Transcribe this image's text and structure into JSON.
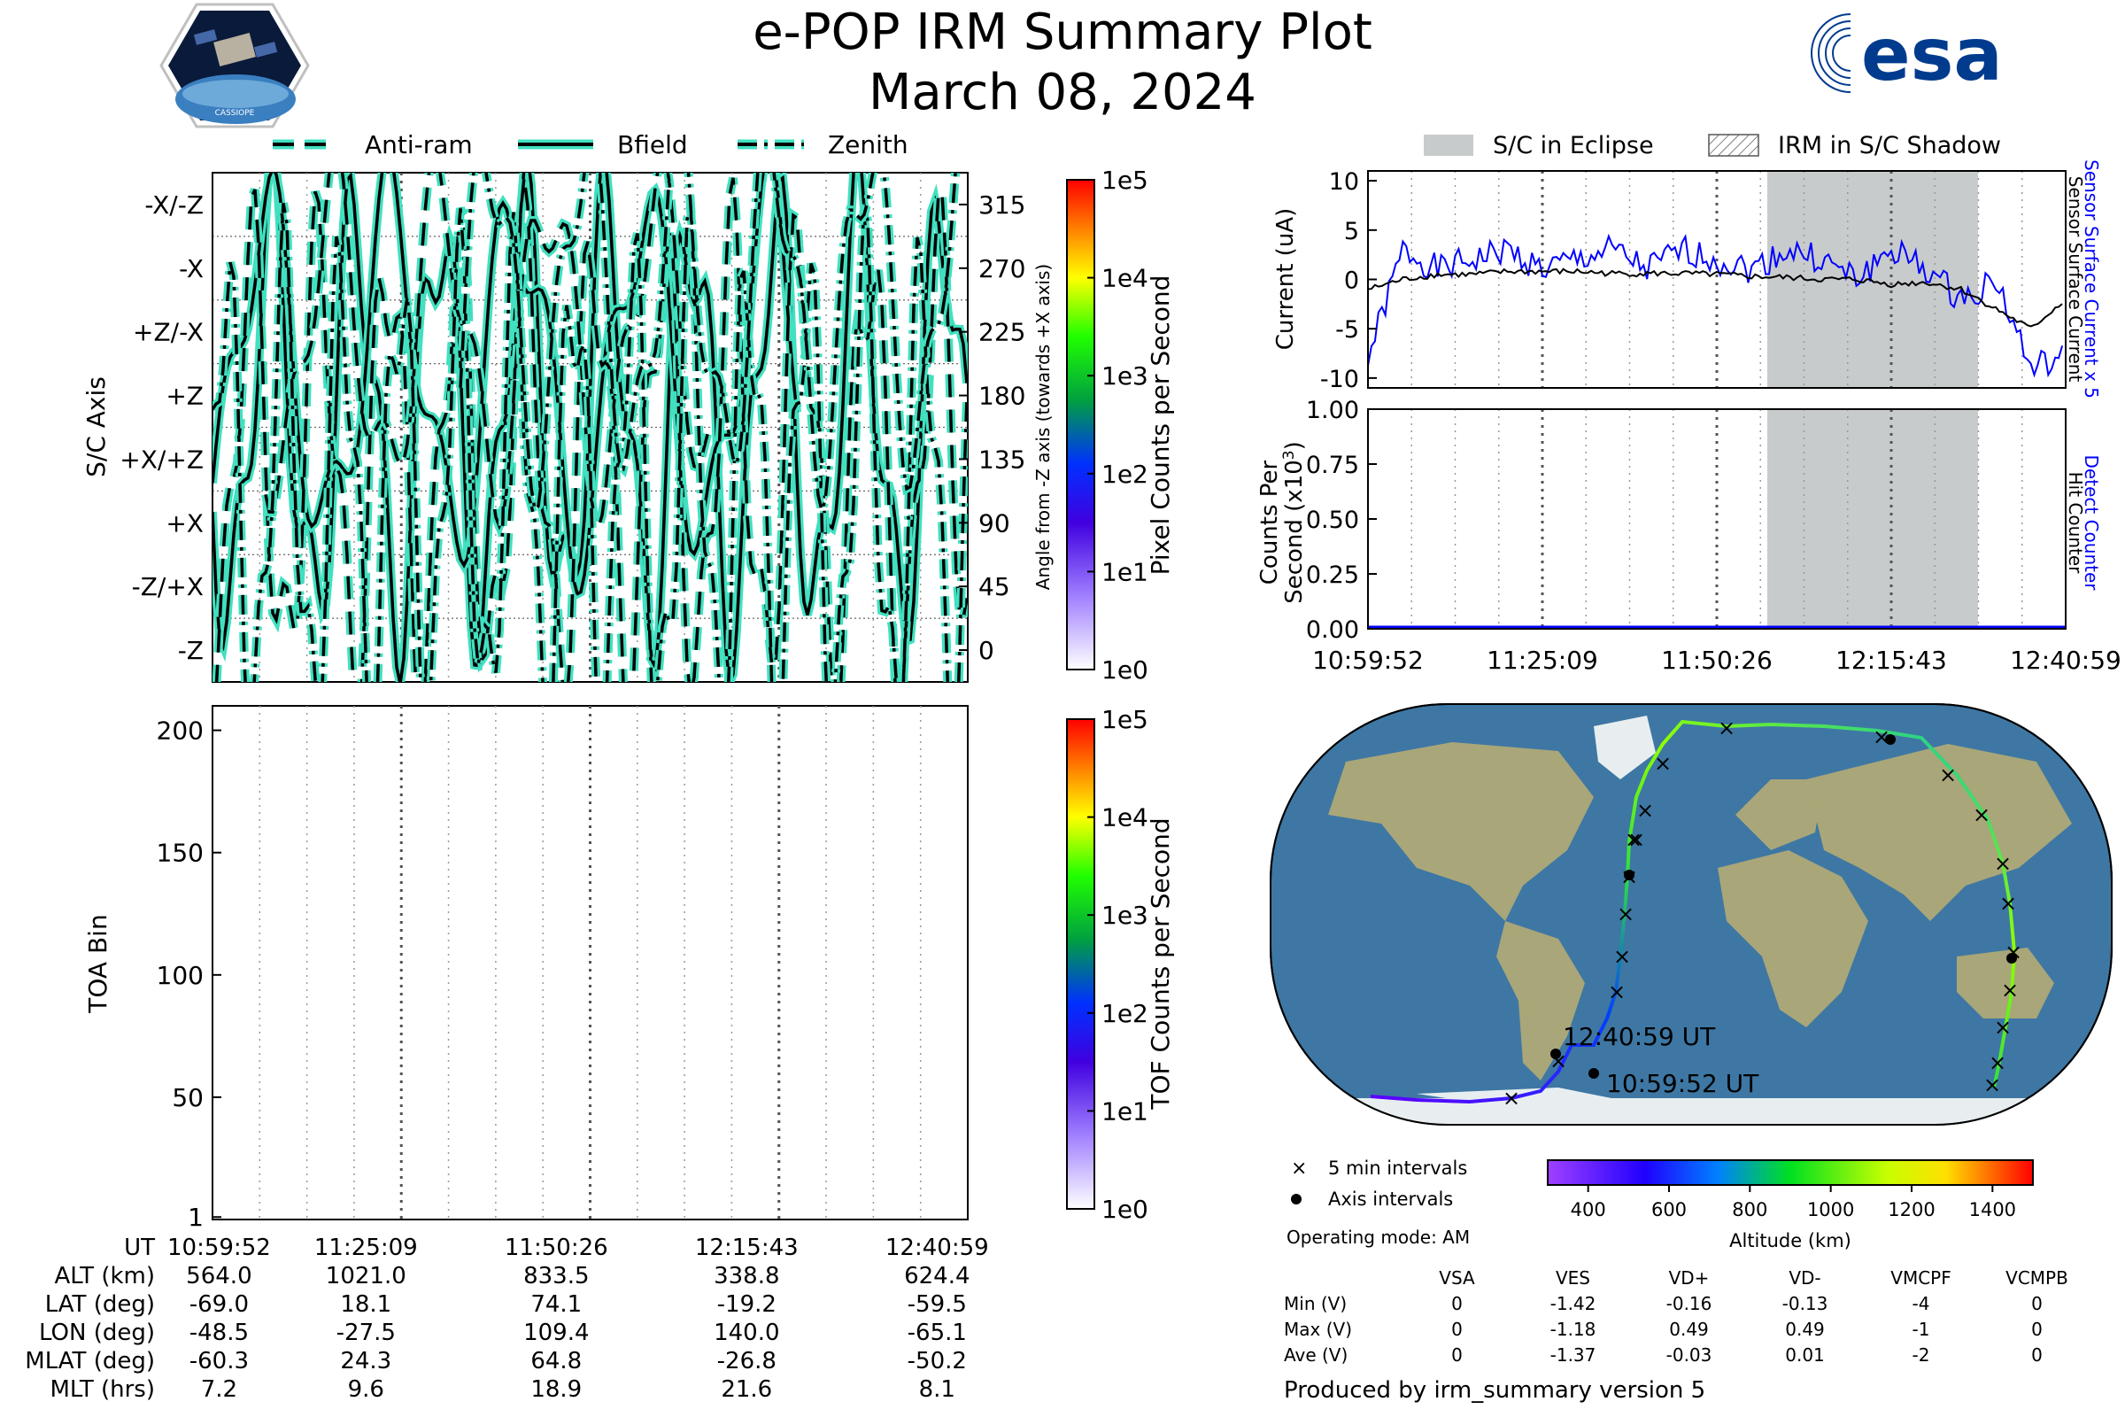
{
  "header": {
    "title": "e-POP IRM Summary Plot",
    "date": "March 08, 2024",
    "mission_logo_text": "CASSIOPE",
    "agency_logo_text": "esa"
  },
  "colors": {
    "trace_line": "#000000",
    "trace_halo": "#40e0c0",
    "surface_current": "#0000ff",
    "current_black": "#000000",
    "eclipse": "#c8cbcc",
    "map_ocean": "#3a6f9b",
    "map_land": "#a4a47c"
  },
  "ut_labels": [
    "10:59:52",
    "11:25:09",
    "11:50:26",
    "12:15:43",
    "12:40:59"
  ],
  "attitude_plot": {
    "legend": [
      "Anti-ram",
      "Bfield",
      "Zenith"
    ],
    "ylabel": "S/C Axis",
    "y_axis_labels": [
      "-X/-Z",
      "-X",
      "+Z/-X",
      "+Z",
      "+X/+Z",
      "+X",
      "-Z/+X",
      "-Z"
    ],
    "right_ticks": [
      "315",
      "270",
      "225",
      "180",
      "135",
      "90",
      "45",
      "0"
    ],
    "right_label": "Angle from -Z axis (towards +X axis)",
    "colorbar_label": "Pixel Counts per Second",
    "colorbar_ticks": [
      "1e5",
      "1e4",
      "1e3",
      "1e2",
      "1e1",
      "1e0"
    ]
  },
  "tof_plot": {
    "ylabel": "TOA Bin",
    "yticks": [
      "200",
      "150",
      "100",
      "50",
      "1"
    ],
    "colorbar_label": "TOF Counts per Second",
    "colorbar_ticks": [
      "1e5",
      "1e4",
      "1e3",
      "1e2",
      "1e1",
      "1e0"
    ]
  },
  "current_plot": {
    "legend": [
      "S/C in Eclipse",
      "IRM in S/C Shadow"
    ],
    "ylabel": "Current (uA)",
    "yticks": [
      "10",
      "5",
      "0",
      "-5",
      "-10"
    ],
    "right_label_blue": "Sensor Surface Current x 5",
    "right_label_black": "Sensor Surface Current"
  },
  "counts_plot": {
    "ylabel_line1": "Counts Per",
    "ylabel_line2": "Second (x10",
    "ylabel_exp": "3",
    "ylabel_close": ")",
    "yticks": [
      "1.00",
      "0.75",
      "0.50",
      "0.25",
      "0.00"
    ],
    "right_label_blue": "Detect Counter",
    "right_label_black": "Hit Counter"
  },
  "map": {
    "end_label": "12:40:59 UT",
    "start_label": "10:59:52 UT",
    "legend_5min": "5 min intervals",
    "legend_axis": "Axis intervals",
    "colorbar_ticks": [
      "400",
      "600",
      "800",
      "1000",
      "1200",
      "1400"
    ],
    "colorbar_label": "Altitude (km)"
  },
  "params": {
    "labels": [
      "UT",
      "ALT (km)",
      "LAT (deg)",
      "LON (deg)",
      "MLAT (deg)",
      "MLT (hrs)"
    ],
    "rows": [
      [
        "10:59:52",
        "11:25:09",
        "11:50:26",
        "12:15:43",
        "12:40:59"
      ],
      [
        "564.0",
        "1021.0",
        "833.5",
        "338.8",
        "624.4"
      ],
      [
        "-69.0",
        "18.1",
        "74.1",
        "-19.2",
        "-59.5"
      ],
      [
        "-48.5",
        "-27.5",
        "109.4",
        "140.0",
        "-65.1"
      ],
      [
        "-60.3",
        "24.3",
        "64.8",
        "-26.8",
        "-50.2"
      ],
      [
        "7.2",
        "9.6",
        "18.9",
        "21.6",
        "8.1"
      ]
    ]
  },
  "operating_mode": "Operating mode: AM",
  "voltages": {
    "headers": [
      "VSA",
      "VES",
      "VD+",
      "VD-",
      "VMCPF",
      "VCMPB"
    ],
    "rows": [
      {
        "label": "Min (V)",
        "values": [
          "0",
          "-1.42",
          "-0.16",
          "-0.13",
          "-4",
          "0"
        ]
      },
      {
        "label": "Max (V)",
        "values": [
          "0",
          "-1.18",
          "0.49",
          "0.49",
          "-1",
          "0"
        ]
      },
      {
        "label": "Ave (V)",
        "values": [
          "0",
          "-1.37",
          "-0.03",
          "0.01",
          "-2",
          "0"
        ]
      }
    ]
  },
  "footer": "Produced by irm_summary version 5",
  "chart_data": [
    {
      "type": "line",
      "title": "",
      "ylabel": "S/C Axis",
      "y2label": "Angle from -Z axis (towards +X axis)",
      "ylim": [
        -22.5,
        337.5
      ],
      "series": [
        {
          "name": "Anti-ram",
          "x": [
            0,
            5,
            10,
            15,
            20,
            25,
            30
          ],
          "values": [
            200,
            160,
            290,
            250,
            200,
            120,
            60
          ]
        },
        {
          "name": "Bfield",
          "x": [
            0,
            10,
            20,
            30,
            40,
            50,
            60
          ],
          "values": [
            330,
            40,
            170,
            250,
            150,
            200,
            60
          ]
        },
        {
          "name": "Zenith",
          "x": [
            0,
            15,
            30,
            45,
            60,
            75,
            90
          ],
          "values": [
            60,
            20,
            100,
            220,
            160,
            230,
            190
          ]
        }
      ]
    },
    {
      "type": "heatmap",
      "title": "",
      "ylabel": "TOA Bin",
      "ylim": [
        1,
        210
      ],
      "values": []
    },
    {
      "type": "line",
      "title": "",
      "ylabel": "Current (uA)",
      "ylim": [
        -11,
        11
      ],
      "x": [
        0,
        5,
        10,
        15,
        20,
        25,
        30,
        35,
        40,
        45,
        50,
        55,
        60,
        65,
        70,
        75,
        80,
        85,
        90,
        95,
        100
      ],
      "series": [
        {
          "name": "Sensor Surface Current x 5",
          "values": [
            -8,
            3,
            1,
            2,
            3,
            1,
            2,
            3,
            1,
            3,
            2,
            1,
            3,
            2,
            0,
            3,
            1,
            -2,
            0,
            -9,
            -8
          ]
        },
        {
          "name": "Sensor Surface Current",
          "values": [
            -1,
            0,
            0.5,
            0.5,
            0.8,
            0.8,
            0.8,
            0.6,
            0.6,
            0.6,
            0.5,
            0.3,
            0.2,
            0,
            0,
            -0.5,
            -0.3,
            -1,
            -3,
            -5,
            -2
          ]
        }
      ],
      "eclipse_ut": [
        "11:56:30",
        "12:27:00"
      ]
    },
    {
      "type": "line",
      "title": "",
      "ylabel": "Counts Per Second (x10^3)",
      "ylim": [
        0,
        1
      ],
      "x": [
        0,
        100
      ],
      "series": [
        {
          "name": "Detect Counter",
          "values": [
            0,
            0
          ]
        },
        {
          "name": "Hit Counter",
          "values": [
            0,
            0
          ]
        }
      ]
    }
  ]
}
